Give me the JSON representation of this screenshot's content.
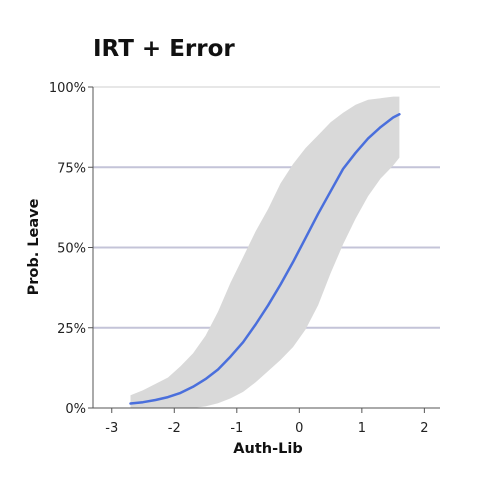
{
  "chart_data": {
    "type": "line",
    "title": "IRT + Error",
    "xlabel": "Auth-Lib",
    "ylabel": "Prob. Leave",
    "xlim": [
      -3.3,
      2.25
    ],
    "ylim": [
      0,
      1
    ],
    "x_ticks": [
      -3,
      -2,
      -1,
      0,
      1,
      2
    ],
    "x_tick_labels": [
      "-3",
      "-2",
      "-1",
      "0",
      "1",
      "2"
    ],
    "y_ticks": [
      0,
      0.25,
      0.5,
      0.75,
      1
    ],
    "y_tick_labels": [
      "0%",
      "25%",
      "50%",
      "75%",
      "100%"
    ],
    "grid": "horizontal",
    "legend": "none",
    "colors": {
      "line": "#4a6fdc",
      "band": "#d9d9d9",
      "grid": "#c4c4d8",
      "axis": "#555555"
    },
    "series": [
      {
        "x": [
          -2.7,
          -2.5,
          -2.3,
          -2.1,
          -1.9,
          -1.7,
          -1.5,
          -1.3,
          -1.1,
          -0.9,
          -0.7,
          -0.5,
          -0.3,
          -0.1,
          0.1,
          0.3,
          0.5,
          0.7,
          0.9,
          1.1,
          1.3,
          1.5,
          1.6
        ],
        "y": [
          0.014,
          0.018,
          0.025,
          0.034,
          0.047,
          0.066,
          0.09,
          0.12,
          0.16,
          0.205,
          0.26,
          0.32,
          0.385,
          0.455,
          0.53,
          0.605,
          0.675,
          0.745,
          0.795,
          0.84,
          0.875,
          0.905,
          0.915
        ],
        "lower": [
          0.0,
          0.0,
          0.0,
          0.0,
          0.0,
          0.0,
          0.005,
          0.015,
          0.03,
          0.05,
          0.08,
          0.115,
          0.15,
          0.19,
          0.245,
          0.32,
          0.42,
          0.51,
          0.59,
          0.66,
          0.715,
          0.755,
          0.78
        ],
        "upper": [
          0.04,
          0.055,
          0.075,
          0.095,
          0.13,
          0.17,
          0.225,
          0.3,
          0.39,
          0.47,
          0.55,
          0.62,
          0.7,
          0.76,
          0.81,
          0.85,
          0.89,
          0.92,
          0.945,
          0.96,
          0.965,
          0.97,
          0.97
        ]
      }
    ]
  }
}
